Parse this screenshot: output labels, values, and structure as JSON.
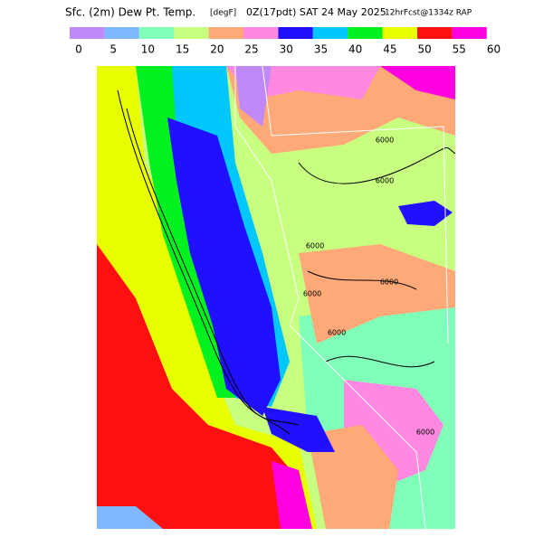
{
  "header": {
    "title": "Sfc. (2m) Dew Pt. Temp.",
    "units": "[degF]",
    "valid": "0Z(17pdt) SAT 24 May 2025",
    "source": "12hrFcst@1334z RAP"
  },
  "colorbar": {
    "colors": [
      "#c088f8",
      "#80b8ff",
      "#80ffb8",
      "#c8ff80",
      "#ffa878",
      "#ff88e0",
      "#2010ff",
      "#00c8ff",
      "#00f020",
      "#e8ff00",
      "#ff1010",
      "#ff00e0"
    ],
    "ticks": [
      0,
      5,
      10,
      15,
      20,
      25,
      30,
      35,
      40,
      45,
      50,
      55,
      60
    ]
  },
  "contour_labels": [
    "6000",
    "6000",
    "6000",
    "6000",
    "6000",
    "6000",
    "6000"
  ]
}
